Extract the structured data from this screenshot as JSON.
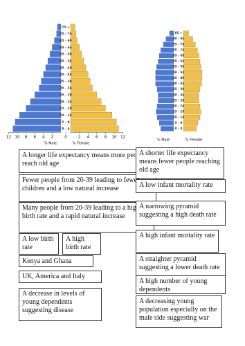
{
  "chart_data": [
    {
      "type": "pyramid",
      "categories": [
        "0 - 4",
        "5 - 9",
        "10 - 14",
        "15 - 19",
        "20 - 24",
        "25 - 29",
        "30 - 34",
        "35 - 39",
        "40 - 44",
        "45 - 49",
        "50 - 54",
        "55 - 59",
        "60 - 64",
        "65 - 69",
        "70 - 74",
        "75 +"
      ],
      "series": [
        {
          "name": "% Male",
          "color": "#4a78d6",
          "values": [
            -11,
            -10.5,
            -9.5,
            -8,
            -7,
            -6,
            -5,
            -4.5,
            -4,
            -3.5,
            -3,
            -2.5,
            -2,
            -1.5,
            -1,
            -0.8
          ]
        },
        {
          "name": "% Female",
          "color": "#f4bf3c",
          "values": [
            11,
            10.5,
            9.5,
            8,
            7,
            6,
            5,
            4.5,
            4,
            3.5,
            3,
            2.5,
            2,
            1.5,
            1.2,
            1
          ]
        }
      ],
      "xlim": [
        -12,
        12
      ],
      "xticks": [
        {
          "value": -12,
          "label": "12"
        },
        {
          "value": -10,
          "label": "10"
        },
        {
          "value": -8,
          "label": "8"
        },
        {
          "value": -6,
          "label": "6"
        },
        {
          "value": -4,
          "label": "4"
        },
        {
          "value": -2,
          "label": "2"
        },
        0,
        2,
        4,
        6,
        8,
        10,
        12
      ]
    },
    {
      "type": "pyramid",
      "categories": [
        "0 - 4",
        "5 - 9",
        "10 - 14",
        "15 - 19",
        "20 - 24",
        "25 - 29",
        "30 - 34",
        "35 - 39",
        "40 - 44",
        "45 - 49",
        "50 - 54",
        "55 - 59",
        "60 - 64",
        "65 - 69",
        "70 - 74",
        "75 - 79",
        "80 - 84",
        "85 +"
      ],
      "series": [
        {
          "name": "% Male",
          "color": "#4a78d6",
          "values": [
            -2.5,
            -2.8,
            -3.2,
            -3.4,
            -3.2,
            -3,
            -3,
            -3.2,
            -3.5,
            -3.5,
            -3.5,
            -3.3,
            -3,
            -2.8,
            -2.5,
            -2,
            -1.5,
            -0.8
          ]
        },
        {
          "name": "% Female",
          "color": "#f4bf3c",
          "values": [
            2.5,
            2.8,
            3.2,
            3.4,
            3.2,
            3,
            3,
            3.2,
            3.5,
            3.6,
            3.6,
            3.4,
            3.2,
            3,
            2.7,
            2.3,
            1.8,
            1
          ]
        }
      ],
      "xlim": [
        -5,
        5
      ]
    }
  ],
  "cards": {
    "left": [
      "A longer life expectancy means more people reach old age",
      "Fewer people from 20-39 leading to fewer children and a low natural increase",
      "Many people from 20-39 leading to a higher birth rate and a rapid natural increase",
      "A low birth rate",
      "A high birth rate",
      "Kenya and Ghana",
      "UK, America and Italy",
      "A decrease in levels of young dependents suggesting disease"
    ],
    "right": [
      "A shorter life expectancy means fewer people reaching old age",
      "A low infant mortality rate",
      "A narrowing pyramid suggesting a high death rate",
      "A high infant mortality rate",
      "A straighter pyramid suggesting a lower death rate",
      "A high number of young dependents",
      "A decreasing young population especially on the male side suggesting war"
    ]
  }
}
